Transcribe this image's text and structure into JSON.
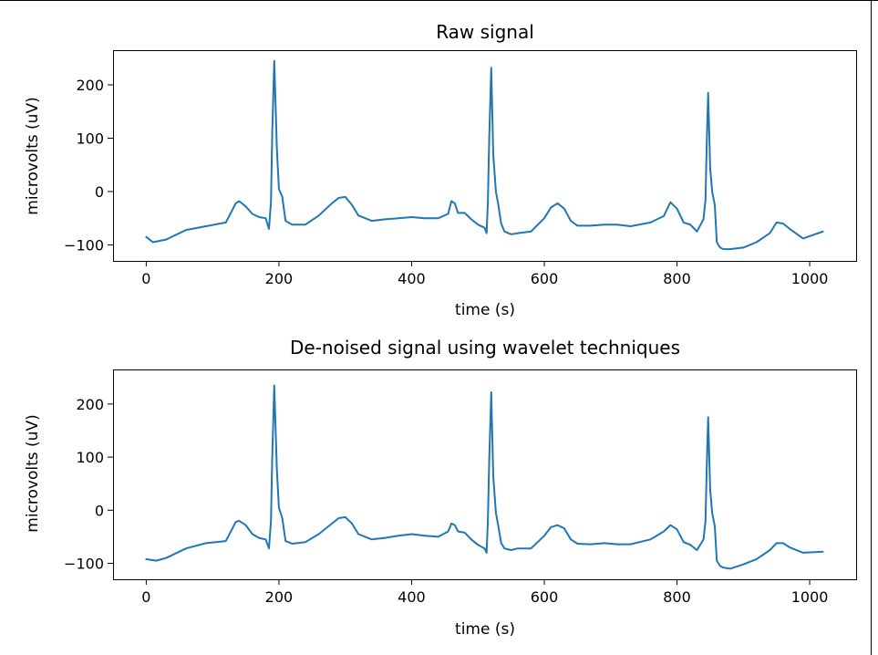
{
  "chart_data": [
    {
      "type": "line",
      "title": "Raw signal",
      "xlabel": "time (s)",
      "ylabel": "microvolts (uV)",
      "xlim": [
        -50,
        1070
      ],
      "ylim": [
        -130,
        265
      ],
      "xticks": [
        0,
        200,
        400,
        600,
        800,
        1000
      ],
      "yticks": [
        -100,
        0,
        100,
        200
      ],
      "grid": false,
      "color": "#1f77b4",
      "series": [
        {
          "x": [
            0,
            10,
            30,
            60,
            90,
            120,
            135,
            140,
            150,
            160,
            170,
            180,
            185,
            188,
            190,
            193,
            197,
            200,
            205,
            210,
            220,
            240,
            260,
            280,
            290,
            300,
            310,
            320,
            340,
            360,
            380,
            400,
            420,
            440,
            455,
            460,
            465,
            470,
            480,
            490,
            500,
            510,
            513,
            515,
            517,
            520,
            523,
            527,
            530,
            535,
            540,
            550,
            560,
            580,
            600,
            610,
            620,
            630,
            640,
            650,
            670,
            690,
            710,
            730,
            760,
            780,
            790,
            800,
            810,
            820,
            830,
            840,
            843,
            845,
            847,
            850,
            853,
            857,
            860,
            865,
            870,
            880,
            900,
            920,
            940,
            950,
            960,
            970,
            990,
            1020
          ],
          "y": [
            -85,
            -95,
            -90,
            -72,
            -65,
            -58,
            -22,
            -18,
            -28,
            -42,
            -48,
            -50,
            -70,
            -20,
            110,
            245,
            80,
            5,
            -10,
            -55,
            -62,
            -62,
            -45,
            -22,
            -12,
            -10,
            -25,
            -45,
            -55,
            -52,
            -50,
            -48,
            -50,
            -50,
            -42,
            -18,
            -22,
            -40,
            -40,
            -52,
            -62,
            -68,
            -78,
            -20,
            100,
            232,
            70,
            0,
            -20,
            -60,
            -75,
            -80,
            -78,
            -75,
            -50,
            -30,
            -22,
            -32,
            -55,
            -64,
            -64,
            -62,
            -62,
            -65,
            -58,
            -46,
            -20,
            -32,
            -58,
            -62,
            -75,
            -52,
            -15,
            100,
            185,
            45,
            0,
            -25,
            -95,
            -105,
            -108,
            -108,
            -105,
            -95,
            -78,
            -58,
            -60,
            -70,
            -88,
            -75
          ]
        }
      ]
    },
    {
      "type": "line",
      "title": "De-noised signal using wavelet techniques",
      "xlabel": "time (s)",
      "ylabel": "microvolts (uV)",
      "xlim": [
        -50,
        1070
      ],
      "ylim": [
        -130,
        265
      ],
      "xticks": [
        0,
        200,
        400,
        600,
        800,
        1000
      ],
      "yticks": [
        -100,
        0,
        100,
        200
      ],
      "grid": false,
      "color": "#1f77b4",
      "series": [
        {
          "x": [
            0,
            15,
            30,
            60,
            90,
            120,
            135,
            140,
            150,
            160,
            170,
            180,
            185,
            188,
            190,
            193,
            197,
            200,
            205,
            210,
            220,
            240,
            260,
            280,
            290,
            300,
            310,
            320,
            340,
            360,
            380,
            400,
            420,
            440,
            455,
            460,
            465,
            470,
            480,
            490,
            500,
            510,
            513,
            515,
            517,
            520,
            523,
            527,
            530,
            535,
            540,
            550,
            560,
            580,
            600,
            610,
            620,
            630,
            640,
            650,
            670,
            690,
            710,
            730,
            760,
            780,
            790,
            800,
            810,
            820,
            830,
            840,
            843,
            845,
            847,
            850,
            853,
            857,
            860,
            865,
            870,
            880,
            900,
            920,
            940,
            950,
            960,
            970,
            990,
            1020
          ],
          "y": [
            -92,
            -95,
            -90,
            -72,
            -62,
            -58,
            -22,
            -20,
            -28,
            -45,
            -52,
            -55,
            -72,
            -20,
            100,
            235,
            75,
            5,
            -15,
            -58,
            -63,
            -60,
            -45,
            -25,
            -15,
            -13,
            -25,
            -45,
            -55,
            -52,
            -48,
            -45,
            -48,
            -50,
            -40,
            -25,
            -28,
            -40,
            -42,
            -55,
            -65,
            -72,
            -80,
            -20,
            95,
            222,
            65,
            -5,
            -25,
            -62,
            -72,
            -75,
            -72,
            -72,
            -48,
            -32,
            -28,
            -34,
            -55,
            -63,
            -64,
            -62,
            -64,
            -64,
            -55,
            -40,
            -28,
            -36,
            -60,
            -65,
            -75,
            -55,
            -20,
            90,
            175,
            40,
            -5,
            -30,
            -95,
            -105,
            -108,
            -110,
            -102,
            -92,
            -75,
            -62,
            -62,
            -70,
            -80,
            -78
          ]
        }
      ]
    }
  ]
}
